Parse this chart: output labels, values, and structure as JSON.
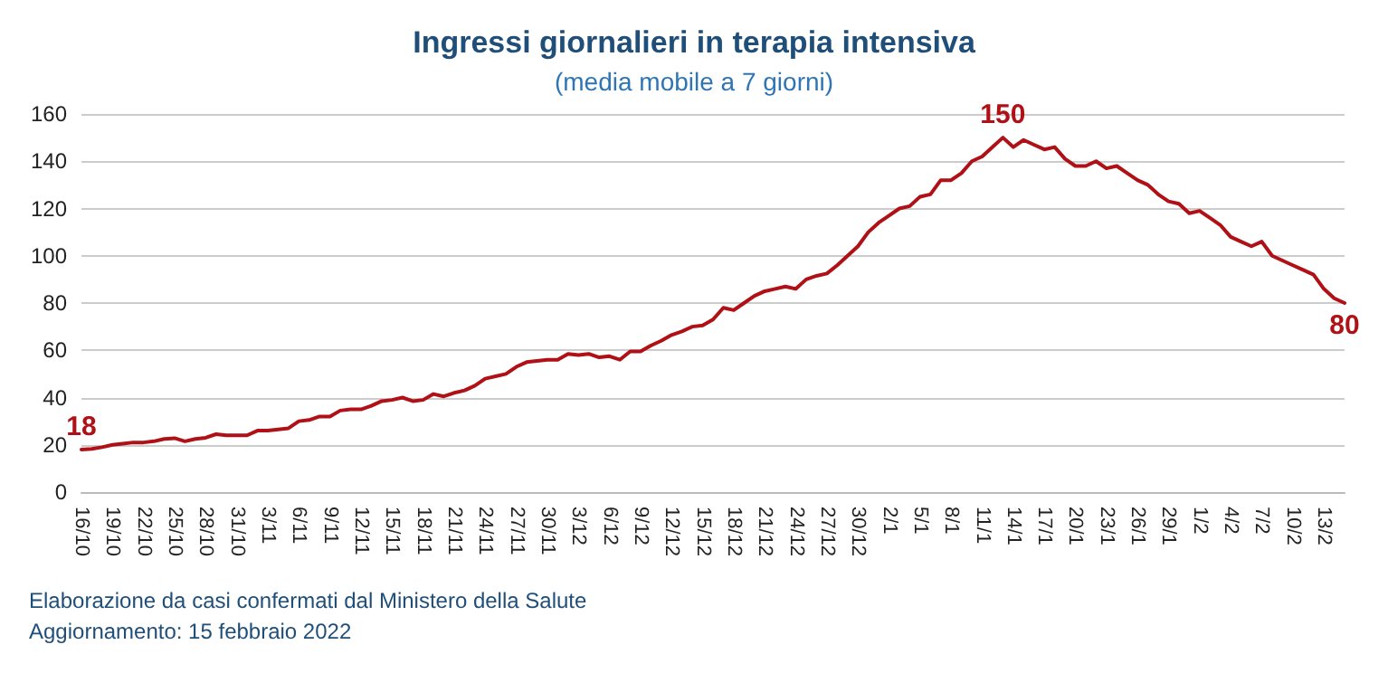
{
  "chart_data": {
    "type": "line",
    "title": "Ingressi giornalieri in terapia intensiva",
    "subtitle": "(media mobile a 7 giorni)",
    "categories": [
      "16/10",
      null,
      null,
      "19/10",
      null,
      null,
      "22/10",
      null,
      null,
      "25/10",
      null,
      null,
      "28/10",
      null,
      null,
      "31/10",
      null,
      null,
      "3/11",
      null,
      null,
      "6/11",
      null,
      null,
      "9/11",
      null,
      null,
      "12/11",
      null,
      null,
      "15/11",
      null,
      null,
      "18/11",
      null,
      null,
      "21/11",
      null,
      null,
      "24/11",
      null,
      null,
      "27/11",
      null,
      null,
      "30/11",
      null,
      null,
      "3/12",
      null,
      null,
      "6/12",
      null,
      null,
      "9/12",
      null,
      null,
      "12/12",
      null,
      null,
      "15/12",
      null,
      null,
      "18/12",
      null,
      null,
      "21/12",
      null,
      null,
      "24/12",
      null,
      null,
      "27/12",
      null,
      null,
      "30/12",
      null,
      null,
      "2/1",
      null,
      null,
      "5/1",
      null,
      null,
      "8/1",
      null,
      null,
      "11/1",
      null,
      null,
      "14/1",
      null,
      null,
      "17/1",
      null,
      null,
      "20/1",
      null,
      null,
      "23/1",
      null,
      null,
      "26/1",
      null,
      null,
      "29/1",
      null,
      null,
      "1/2",
      null,
      null,
      "4/2",
      null,
      null,
      "7/2",
      null,
      null,
      "10/2",
      null,
      null,
      "13/2",
      null,
      null
    ],
    "series": [
      {
        "color": "#b01116",
        "values": [
          18,
          18.3,
          19,
          20,
          20.5,
          21,
          21,
          21.5,
          22.5,
          22.8,
          21.5,
          22.5,
          23,
          24.5,
          24,
          24,
          24,
          26,
          26,
          26.5,
          27,
          30,
          30.5,
          32,
          32,
          34.5,
          35,
          35,
          36.5,
          38.5,
          39,
          40,
          38.5,
          39,
          41.5,
          40.5,
          42,
          43,
          45,
          48,
          49,
          50,
          53,
          55,
          55.5,
          56,
          56,
          58.5,
          58,
          58.5,
          57,
          57.5,
          56,
          59.5,
          59.5,
          62,
          64,
          66.5,
          68,
          70,
          70.5,
          73,
          78,
          77,
          80,
          83,
          85,
          86,
          87,
          86,
          90,
          91.5,
          92.5,
          96,
          100,
          104,
          110,
          114,
          117,
          120,
          121,
          125,
          126,
          132,
          132,
          135,
          140,
          142,
          146,
          150,
          146,
          149,
          147,
          145,
          146,
          141,
          138,
          138,
          140,
          137,
          138,
          135,
          132,
          130,
          126,
          123,
          122,
          118,
          119,
          116,
          113,
          108,
          106,
          104,
          106,
          100,
          98,
          96,
          94,
          92,
          86,
          82,
          80
        ],
        "value_labels": [
          "18",
          null,
          null,
          null,
          null,
          null,
          null,
          null,
          null,
          null,
          null,
          null,
          null,
          null,
          null,
          null,
          null,
          null,
          null,
          null,
          null,
          null,
          null,
          null,
          null,
          null,
          null,
          null,
          null,
          null,
          null,
          null,
          null,
          null,
          null,
          null,
          null,
          null,
          null,
          null,
          null,
          null,
          null,
          null,
          null,
          null,
          null,
          null,
          null,
          null,
          null,
          null,
          null,
          null,
          null,
          null,
          null,
          null,
          null,
          null,
          null,
          null,
          null,
          null,
          null,
          null,
          null,
          null,
          null,
          null,
          null,
          null,
          null,
          null,
          null,
          null,
          null,
          null,
          null,
          null,
          null,
          null,
          null,
          null,
          null,
          null,
          null,
          null,
          null,
          "150",
          null,
          null,
          null,
          null,
          null,
          null,
          null,
          null,
          null,
          null,
          null,
          null,
          null,
          null,
          null,
          null,
          null,
          null,
          null,
          null,
          null,
          null,
          null,
          null,
          null,
          null,
          null,
          null,
          null,
          null,
          null,
          null,
          "80"
        ]
      }
    ],
    "ylim": [
      0,
      160
    ],
    "yticks": [
      0,
      20,
      40,
      60,
      80,
      100,
      120,
      140,
      160
    ],
    "grid": "y",
    "marker": "none",
    "line_style": "solid",
    "annotations": [
      "Elaborazione da casi confermati dal Ministero della Salute",
      "Aggiornamento: 15 febbraio 2022"
    ]
  }
}
